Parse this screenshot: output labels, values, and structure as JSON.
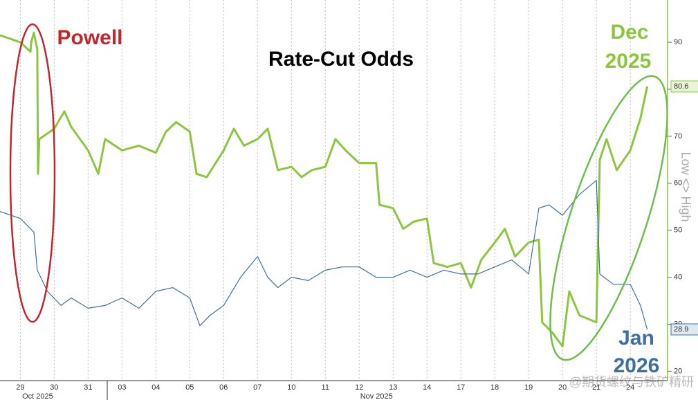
{
  "chart_data": {
    "type": "line",
    "title": "Rate-Cut Odds",
    "annotations": {
      "powell": "Powell",
      "dec": [
        "Dec",
        "2025"
      ],
      "jan": [
        "Jan",
        "2026"
      ]
    },
    "y_axis_label": "Low <> High",
    "watermark": "@期货螺纹与铁矿精研",
    "month_labels": [
      {
        "value": 0,
        "label": "Oct 2025"
      },
      {
        "value": 10,
        "label": "Nov 2025"
      }
    ],
    "xlim": [
      -0.6,
      19.1
    ],
    "xticks": [
      {
        "value": 0,
        "label": "29"
      },
      {
        "value": 1,
        "label": "30"
      },
      {
        "value": 2,
        "label": "31"
      },
      {
        "value": 3,
        "label": "03"
      },
      {
        "value": 4,
        "label": "04"
      },
      {
        "value": 5,
        "label": "05"
      },
      {
        "value": 6,
        "label": "06"
      },
      {
        "value": 7,
        "label": "07"
      },
      {
        "value": 8,
        "label": "10"
      },
      {
        "value": 9,
        "label": "11"
      },
      {
        "value": 10,
        "label": "12"
      },
      {
        "value": 11,
        "label": "13"
      },
      {
        "value": 12,
        "label": "14"
      },
      {
        "value": 13,
        "label": "17"
      },
      {
        "value": 14,
        "label": "18"
      },
      {
        "value": 15,
        "label": "19"
      },
      {
        "value": 16,
        "label": "20"
      },
      {
        "value": 17,
        "label": "21"
      },
      {
        "value": 18,
        "label": "24"
      }
    ],
    "ylim": [
      18,
      99
    ],
    "yticks": [
      20,
      30,
      40,
      50,
      60,
      70,
      80,
      90
    ],
    "grid": true,
    "series": [
      {
        "name": "Dec 2025",
        "color": "#8cc63f",
        "x": [
          -0.6,
          0,
          0.3,
          0.32,
          0.4,
          0.5,
          0.52,
          0.56,
          1,
          1.3,
          1.5,
          2,
          2.3,
          2.5,
          3,
          3.5,
          4,
          4.3,
          4.6,
          5,
          5.2,
          5.5,
          6,
          6.3,
          6.6,
          7,
          7.3,
          7.6,
          8,
          8.3,
          8.6,
          9,
          9.3,
          9.6,
          10,
          10.5,
          10.6,
          11,
          11.3,
          11.6,
          12,
          12.2,
          12.6,
          13,
          13.3,
          13.6,
          14,
          14.3,
          14.6,
          15,
          15.3,
          15.4,
          15.7,
          16,
          16.2,
          16.5,
          17,
          17.1,
          17.3,
          17.6,
          18,
          18.3,
          18.5
        ],
        "values": [
          91.5,
          90,
          88,
          90,
          92,
          88.5,
          62,
          69.4,
          71.6,
          75.3,
          72,
          67,
          62,
          69.4,
          67,
          68,
          66.5,
          71,
          73,
          71,
          62,
          61.3,
          67,
          71.6,
          68,
          69.4,
          71.6,
          62.8,
          63.5,
          61.3,
          62.8,
          63.5,
          69.4,
          67,
          64.3,
          64.3,
          55.4,
          54.7,
          50.3,
          51.8,
          52.5,
          43,
          42.2,
          43,
          37.8,
          43.7,
          47.4,
          50.3,
          44.4,
          47.4,
          48,
          30.4,
          28.2,
          25.3,
          37,
          31.9,
          30.4,
          65,
          69.4,
          62.8,
          67,
          73.8,
          80.6
        ]
      },
      {
        "name": "Jan 2026",
        "color": "#3d6fa0",
        "x": [
          -0.6,
          0,
          0.4,
          0.5,
          0.8,
          1.2,
          1.5,
          2,
          2.5,
          3,
          3.5,
          4,
          4.5,
          5,
          5.3,
          5.6,
          6,
          6.5,
          7,
          7.3,
          7.6,
          8,
          8.5,
          9,
          9.5,
          10,
          10.5,
          11,
          11.5,
          12,
          12.5,
          13,
          13.5,
          14,
          14.5,
          15,
          15.3,
          15.6,
          16,
          16.5,
          17,
          17.1,
          17.5,
          18,
          18.3,
          18.5
        ],
        "values": [
          54,
          52.5,
          49.6,
          41.5,
          37,
          34,
          35.6,
          33.4,
          34,
          35.6,
          33.4,
          37,
          37.8,
          35.6,
          29.7,
          31.9,
          34,
          40,
          44.4,
          40,
          37.8,
          40,
          39.3,
          41.5,
          42.2,
          42.2,
          40,
          40,
          41.5,
          40,
          41.5,
          40.7,
          40.7,
          42.2,
          43.7,
          40.7,
          54.7,
          55.4,
          53.2,
          57.6,
          60.6,
          40.7,
          38.5,
          38.5,
          34,
          28.9
        ]
      }
    ]
  }
}
